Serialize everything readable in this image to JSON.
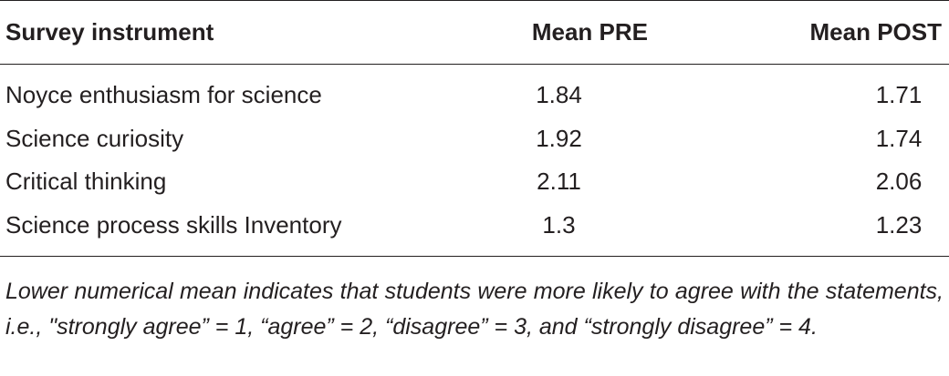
{
  "table": {
    "headers": [
      "Survey instrument",
      "Mean PRE",
      "Mean POST"
    ],
    "rows": [
      {
        "instrument": "Noyce enthusiasm for science",
        "pre": "1.84",
        "post": "1.71"
      },
      {
        "instrument": "Science curiosity",
        "pre": "1.92",
        "post": "1.74"
      },
      {
        "instrument": "Critical thinking",
        "pre": "2.11",
        "post": "2.06"
      },
      {
        "instrument": "Science process skills Inventory",
        "pre": "1.3",
        "post": "1.23"
      }
    ]
  },
  "footnote": "Lower numerical mean indicates that students were more likely to agree with the statements, i.e., \"strongly agree” = 1, “agree” = 2, “disagree” = 3, and “strongly disagree” = 4."
}
